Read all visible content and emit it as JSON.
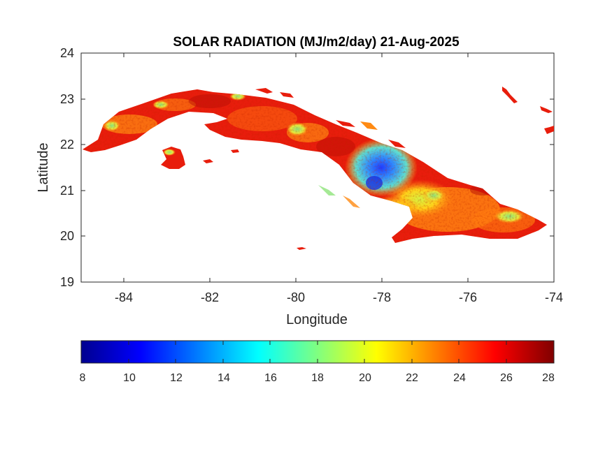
{
  "map": {
    "title": "SOLAR RADIATION (MJ/m2/day) 21-Aug-2025",
    "x_label": "Longitude",
    "y_label": "Latitude",
    "x_ticks": [
      "-84",
      "-82",
      "-80",
      "-78",
      "-76",
      "-74"
    ],
    "y_ticks": [
      "24",
      "23",
      "22",
      "21",
      "20",
      "19"
    ],
    "lon_range": [
      -85,
      -74
    ],
    "lat_range": [
      19,
      24
    ],
    "colormap": "jet",
    "colors": {
      "low_patch": "#2f7cff",
      "mid_patch": "#8fe37a",
      "land_base": "#e81d0c",
      "land_dark": "#b80d05",
      "land_warm": "#ff8a12",
      "axis_color": "#262626"
    }
  },
  "colorbar": {
    "ticks": [
      "8",
      "10",
      "12",
      "14",
      "16",
      "18",
      "20",
      "22",
      "24",
      "26",
      "28"
    ],
    "min": 8,
    "max": 28
  }
}
